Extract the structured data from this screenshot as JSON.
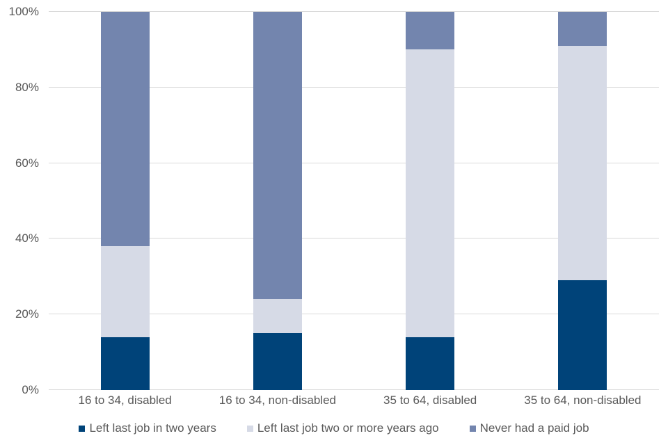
{
  "chart_data": {
    "type": "bar",
    "stacked": true,
    "orientation": "vertical",
    "title": "",
    "xlabel": "",
    "ylabel": "",
    "ylim": [
      0,
      100
    ],
    "grid": true,
    "legend_position": "bottom",
    "categories": [
      "16 to 34, disabled",
      "16 to 34, non-disabled",
      "35 to 64, disabled",
      "35 to 64, non-disabled"
    ],
    "series": [
      {
        "name": "Left last job in two years",
        "color": "#004379",
        "values": [
          14,
          15,
          14,
          29
        ]
      },
      {
        "name": "Left last job two or more years ago",
        "color": "#d6dae6",
        "values": [
          24,
          9,
          76,
          62
        ]
      },
      {
        "name": "Never had a paid job",
        "color": "#7385ae",
        "values": [
          62,
          76,
          10,
          9
        ]
      }
    ],
    "y_axis": {
      "max": 100,
      "ticks": [
        {
          "label": "0%",
          "value": 0
        },
        {
          "label": "20%",
          "value": 20
        },
        {
          "label": "40%",
          "value": 40
        },
        {
          "label": "60%",
          "value": 60
        },
        {
          "label": "80%",
          "value": 80
        },
        {
          "label": "100%",
          "value": 100
        }
      ]
    }
  },
  "colors": {
    "background": "#ffffff",
    "gridline": "#d9d9d9",
    "axis_text": "#595959"
  }
}
